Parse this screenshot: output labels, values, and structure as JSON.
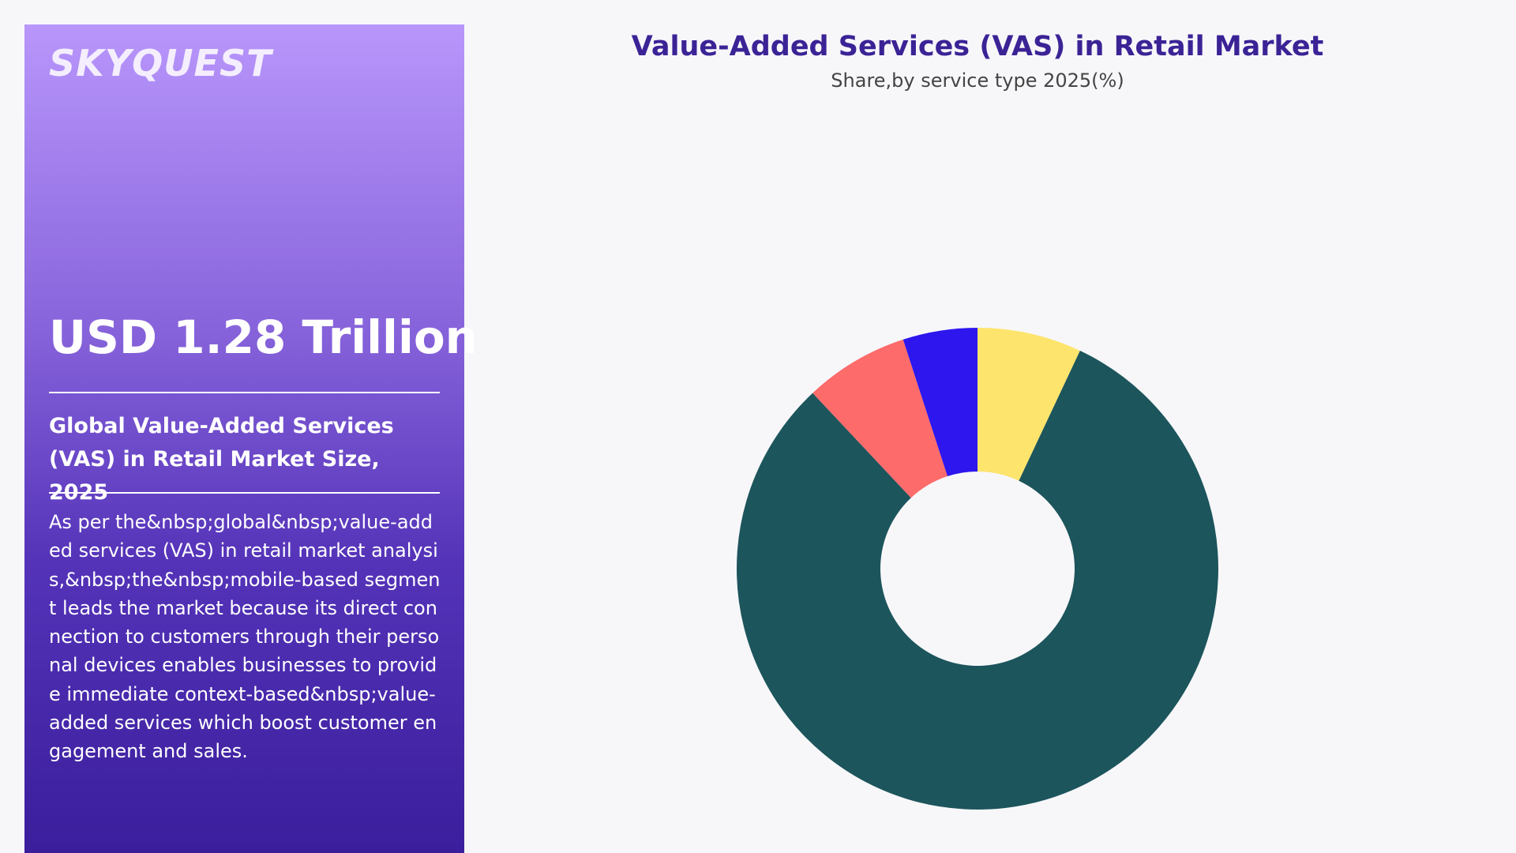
{
  "brand": "SKYQUEST",
  "panel": {
    "headline": "USD 1.28 Trillion",
    "subtitle": "Global Value-Added Services (VAS) in Retail Market Size, 2025",
    "body": "As per the&nbsp;global&nbsp;value-added services (VAS) in retail market analysis,&nbsp;the&nbsp;mobile-based segment leads the market because its direct connection to customers through their personal devices enables businesses to provide immediate context-based&nbsp;value-added services which boost customer engagement and sales."
  },
  "chart_data": {
    "type": "donut",
    "title": "Value-Added Services (VAS) in Retail Market",
    "subtitle": "Share,by service type 2025(%)",
    "values": [
      7,
      81,
      7,
      5
    ],
    "colors": [
      "#fde46c",
      "#1c555c",
      "#fd6b6b",
      "#2d16ee"
    ]
  }
}
